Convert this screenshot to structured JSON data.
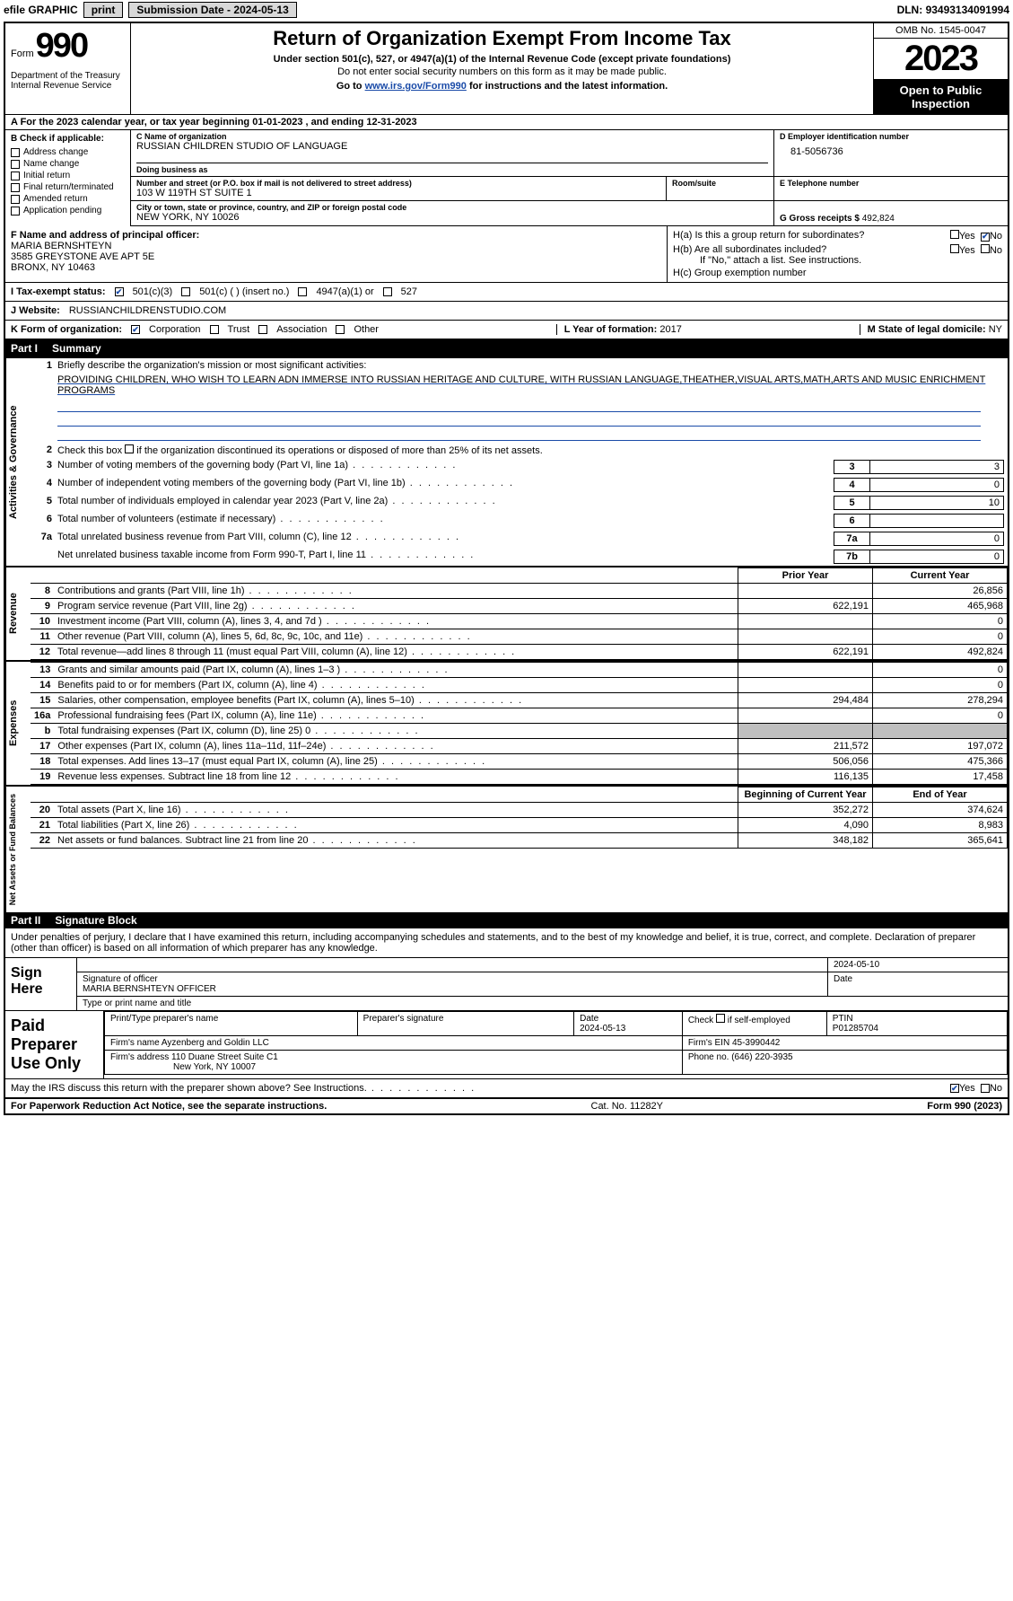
{
  "topbar": {
    "efile": "efile GRAPHIC",
    "print": "print",
    "subdate_lbl": "Submission Date - ",
    "subdate": "2024-05-13",
    "dln_lbl": "DLN: ",
    "dln": "93493134091994"
  },
  "header": {
    "form_word": "Form",
    "form_num": "990",
    "dept": "Department of the Treasury\nInternal Revenue Service",
    "title": "Return of Organization Exempt From Income Tax",
    "sub": "Under section 501(c), 527, or 4947(a)(1) of the Internal Revenue Code (except private foundations)",
    "sub2": "Do not enter social security numbers on this form as it may be made public.",
    "goto_pre": "Go to ",
    "goto_link": "www.irs.gov/Form990",
    "goto_post": " for instructions and the latest information.",
    "omb": "OMB No. 1545-0047",
    "year": "2023",
    "open": "Open to Public Inspection"
  },
  "lineA": {
    "pre": "A For the 2023 calendar year, or tax year beginning ",
    "begin": "01-01-2023",
    "mid": "  , and ending ",
    "end": "12-31-2023"
  },
  "colB": {
    "hdr": "B Check if applicable:",
    "items": [
      "Address change",
      "Name change",
      "Initial return",
      "Final return/terminated",
      "Amended return",
      "Application pending"
    ]
  },
  "colC": {
    "name_lbl": "C Name of organization",
    "name": "RUSSIAN CHILDREN STUDIO OF LANGUAGE",
    "dba_lbl": "Doing business as",
    "dba": "",
    "street_lbl": "Number and street (or P.O. box if mail is not delivered to street address)",
    "street": "103 W 119TH ST SUITE 1",
    "room_lbl": "Room/suite",
    "room": "",
    "city_lbl": "City or town, state or province, country, and ZIP or foreign postal code",
    "city": "NEW YORK, NY  10026"
  },
  "colD": {
    "ein_lbl": "D Employer identification number",
    "ein": "81-5056736",
    "tel_lbl": "E Telephone number",
    "tel": "",
    "gross_lbl": "G Gross receipts $ ",
    "gross": "492,824"
  },
  "rowF": {
    "lbl": "F Name and address of principal officer:",
    "name": "MARIA BERNSHTEYN",
    "addr1": "3585 GREYSTONE AVE APT 5E",
    "addr2": "BRONX, NY  10463"
  },
  "rowH": {
    "ha": "H(a)  Is this a group return for subordinates?",
    "hb": "H(b)  Are all subordinates included?",
    "hb_note": "If \"No,\" attach a list. See instructions.",
    "hc": "H(c)  Group exemption number ",
    "yes": "Yes",
    "no": "No"
  },
  "rowI": {
    "lbl": "I    Tax-exempt status:",
    "o1": "501(c)(3)",
    "o2": "501(c) (  ) (insert no.)",
    "o3": "4947(a)(1) or",
    "o4": "527"
  },
  "rowJ": {
    "lbl": "J   Website: ",
    "val": "RUSSIANCHILDRENSTUDIO.COM"
  },
  "rowK": {
    "lbl": "K Form of organization:",
    "o1": "Corporation",
    "o2": "Trust",
    "o3": "Association",
    "o4": "Other",
    "l_lbl": "L Year of formation: ",
    "l_val": "2017",
    "m_lbl": "M State of legal domicile: ",
    "m_val": "NY"
  },
  "part1": {
    "num": "Part I",
    "title": "Summary"
  },
  "gov": {
    "vtab": "Activities & Governance",
    "l1_lbl": "Briefly describe the organization's mission or most significant activities:",
    "l1_val": "PROVIDING CHILDREN, WHO WISH TO LEARN ADN IMMERSE INTO RUSSIAN HERITAGE AND CULTURE, WITH RUSSIAN LANGUAGE,THEATHER,VISUAL ARTS,MATH,ARTS AND MUSIC ENRICHMENT PROGRAMS",
    "l2": "Check this box        if the organization discontinued its operations or disposed of more than 25% of its net assets.",
    "l3": "Number of voting members of the governing body (Part VI, line 1a)",
    "l3v": "3",
    "l4": "Number of independent voting members of the governing body (Part VI, line 1b)",
    "l4v": "0",
    "l5": "Total number of individuals employed in calendar year 2023 (Part V, line 2a)",
    "l5v": "10",
    "l6": "Total number of volunteers (estimate if necessary)",
    "l6v": "",
    "l7a": "Total unrelated business revenue from Part VIII, column (C), line 12",
    "l7av": "0",
    "l7b": "Net unrelated business taxable income from Form 990-T, Part I, line 11",
    "l7bv": "0"
  },
  "rev": {
    "vtab": "Revenue",
    "hdr_prior": "Prior Year",
    "hdr_curr": "Current Year",
    "rows": [
      {
        "n": "8",
        "t": "Contributions and grants (Part VIII, line 1h)",
        "p": "",
        "c": "26,856"
      },
      {
        "n": "9",
        "t": "Program service revenue (Part VIII, line 2g)",
        "p": "622,191",
        "c": "465,968"
      },
      {
        "n": "10",
        "t": "Investment income (Part VIII, column (A), lines 3, 4, and 7d )",
        "p": "",
        "c": "0"
      },
      {
        "n": "11",
        "t": "Other revenue (Part VIII, column (A), lines 5, 6d, 8c, 9c, 10c, and 11e)",
        "p": "",
        "c": "0"
      },
      {
        "n": "12",
        "t": "Total revenue—add lines 8 through 11 (must equal Part VIII, column (A), line 12)",
        "p": "622,191",
        "c": "492,824"
      }
    ]
  },
  "exp": {
    "vtab": "Expenses",
    "rows": [
      {
        "n": "13",
        "t": "Grants and similar amounts paid (Part IX, column (A), lines 1–3 )",
        "p": "",
        "c": "0"
      },
      {
        "n": "14",
        "t": "Benefits paid to or for members (Part IX, column (A), line 4)",
        "p": "",
        "c": "0"
      },
      {
        "n": "15",
        "t": "Salaries, other compensation, employee benefits (Part IX, column (A), lines 5–10)",
        "p": "294,484",
        "c": "278,294"
      },
      {
        "n": "16a",
        "t": "Professional fundraising fees (Part IX, column (A), line 11e)",
        "p": "",
        "c": "0"
      },
      {
        "n": "b",
        "t": "Total fundraising expenses (Part IX, column (D), line 25) 0",
        "p": "shade",
        "c": "shade"
      },
      {
        "n": "17",
        "t": "Other expenses (Part IX, column (A), lines 11a–11d, 11f–24e)",
        "p": "211,572",
        "c": "197,072"
      },
      {
        "n": "18",
        "t": "Total expenses. Add lines 13–17 (must equal Part IX, column (A), line 25)",
        "p": "506,056",
        "c": "475,366"
      },
      {
        "n": "19",
        "t": "Revenue less expenses. Subtract line 18 from line 12",
        "p": "116,135",
        "c": "17,458"
      }
    ]
  },
  "net": {
    "vtab": "Net Assets or Fund Balances",
    "hdr_begin": "Beginning of Current Year",
    "hdr_end": "End of Year",
    "rows": [
      {
        "n": "20",
        "t": "Total assets (Part X, line 16)",
        "p": "352,272",
        "c": "374,624"
      },
      {
        "n": "21",
        "t": "Total liabilities (Part X, line 26)",
        "p": "4,090",
        "c": "8,983"
      },
      {
        "n": "22",
        "t": "Net assets or fund balances. Subtract line 21 from line 20",
        "p": "348,182",
        "c": "365,641"
      }
    ]
  },
  "part2": {
    "num": "Part II",
    "title": "Signature Block"
  },
  "sig": {
    "intro": "Under penalties of perjury, I declare that I have examined this return, including accompanying schedules and statements, and to the best of my knowledge and belief, it is true, correct, and complete. Declaration of preparer (other than officer) is based on all information of which preparer has any knowledge.",
    "sign_here": "Sign Here",
    "sig_lbl": "Signature of officer",
    "sig_name": "MARIA BERNSHTEYN  OFFICER",
    "sig_title_lbl": "Type or print name and title",
    "date_lbl": "Date",
    "date": "2024-05-10"
  },
  "paid": {
    "lbl": "Paid Preparer Use Only",
    "prep_name_lbl": "Print/Type preparer's name",
    "prep_name": "",
    "prep_sig_lbl": "Preparer's signature",
    "prep_date_lbl": "Date",
    "prep_date": "2024-05-13",
    "self_lbl": "Check         if self-employed",
    "ptin_lbl": "PTIN",
    "ptin": "P01285704",
    "firm_name_lbl": "Firm's name   ",
    "firm_name": "Ayzenberg and Goldin LLC",
    "firm_ein_lbl": "Firm's EIN  ",
    "firm_ein": "45-3990442",
    "firm_addr_lbl": "Firm's address ",
    "firm_addr": "110 Duane Street Suite C1",
    "firm_city": "New York, NY  10007",
    "phone_lbl": "Phone no. ",
    "phone": "(646) 220-3935"
  },
  "discuss": {
    "txt": "May the IRS discuss this return with the preparer shown above? See Instructions.",
    "yes": "Yes",
    "no": "No"
  },
  "footer": {
    "left": "For Paperwork Reduction Act Notice, see the separate instructions.",
    "cat": "Cat. No. 11282Y",
    "right": "Form 990 (2023)"
  }
}
